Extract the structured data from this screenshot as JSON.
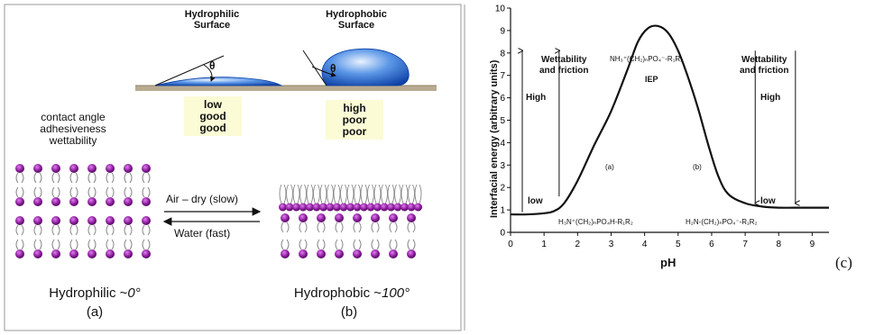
{
  "left_panel": {
    "hydrophilic_surface_title": [
      "Hydrophilic",
      "Surface"
    ],
    "hydrophobic_surface_title": [
      "Hydrophobic",
      "Surface"
    ],
    "angle_symbol": "θ",
    "properties": [
      "contact angle",
      "adhesiveness",
      "wettability"
    ],
    "hydrophilic_values": [
      "low",
      "good",
      "good"
    ],
    "hydrophobic_values": [
      "high",
      "poor",
      "poor"
    ],
    "arrow_forward_label": "Air – dry (slow)",
    "arrow_back_label": "Water (fast)",
    "caption_a_text": "Hydrophilic ~",
    "caption_a_angle": "0°",
    "caption_a_letter": "(a)",
    "caption_b_text": "Hydrophobic ~",
    "caption_b_angle": "100°",
    "caption_b_letter": "(b)",
    "colors": {
      "headgroup": "#8a1b9a",
      "droplet": "#3f7fd9",
      "surface": "#b8ab91",
      "tail": "#888888"
    }
  },
  "chart_data": {
    "type": "line",
    "xlabel": "pH",
    "ylabel": "Interfacial energy (arbitrary units)",
    "xlim": [
      0,
      9.5
    ],
    "ylim": [
      0,
      10
    ],
    "xticks": [
      0,
      1,
      2,
      3,
      4,
      5,
      6,
      7,
      8,
      9
    ],
    "yticks": [
      0,
      1,
      2,
      3,
      4,
      5,
      6,
      7,
      8,
      9,
      10
    ],
    "x": [
      0.0,
      0.5,
      1.0,
      1.3,
      1.6,
      2.0,
      2.5,
      3.0,
      3.5,
      3.8,
      4.1,
      4.4,
      4.7,
      5.0,
      5.3,
      5.6,
      5.9,
      6.2,
      6.5,
      7.0,
      7.5,
      8.0,
      8.5,
      9.5
    ],
    "y": [
      0.8,
      0.8,
      0.85,
      0.95,
      1.3,
      2.3,
      3.9,
      5.4,
      7.3,
      8.5,
      9.1,
      9.2,
      8.9,
      8.1,
      6.9,
      5.5,
      3.9,
      2.5,
      1.7,
      1.3,
      1.15,
      1.1,
      1.1,
      1.1
    ],
    "annotations": {
      "left_heading": [
        "Wettability",
        "and friction"
      ],
      "right_heading": [
        "Wettability",
        "and friction"
      ],
      "high_left": "High",
      "low_left": "low",
      "high_right": "High",
      "low_right": "low",
      "iep": "IEP",
      "region_a": "(a)",
      "region_b": "(b)",
      "species_top": "NH₃⁺(CH₂)ₙPO₄⁻-R₁R₂",
      "species_left": "H₃N⁺(CH₂)ₙPO₄H-R₁R₂",
      "species_right": "H₂N-(CH₂)ₙPO₄⁻-R₁R₂"
    },
    "panel_label": "(c)"
  }
}
